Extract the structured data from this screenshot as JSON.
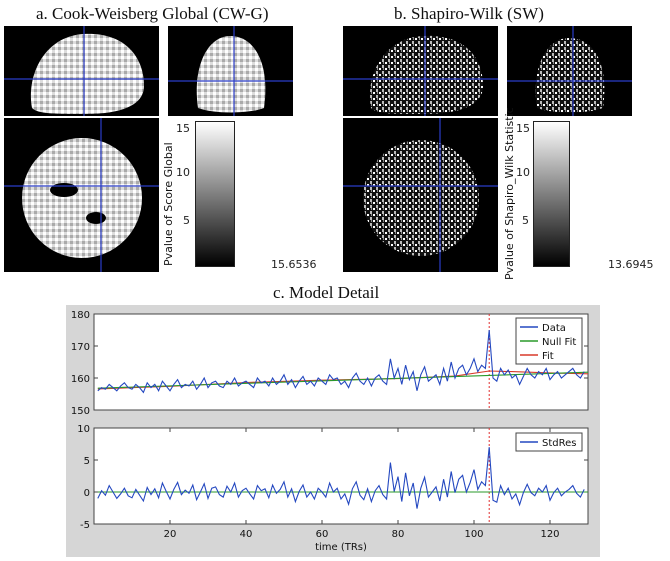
{
  "panels": {
    "a": {
      "title": "a. Cook-Weisberg Global (CW-G)",
      "colorbar_label": "Pvalue of Score Global",
      "colorbar_ticks": [
        "15",
        "10",
        "5"
      ],
      "colorbar_max": "15.6536"
    },
    "b": {
      "title": "b. Shapiro-Wilk (SW)",
      "colorbar_label": "Pvalue of Shapiro_Wilk Statistic",
      "colorbar_ticks": [
        "15",
        "10",
        "5"
      ],
      "colorbar_max": "13.6945"
    },
    "c": {
      "title": "c. Model Detail",
      "xlabel": "time (TRs)"
    }
  },
  "colors": {
    "crosshair": "#2a3cc8",
    "data": "#2448c0",
    "null_fit": "#2a9a2a",
    "fit": "#d83a2a",
    "marker": "#e03030",
    "frame": "#d6d6d6"
  },
  "chart_data": [
    {
      "type": "line",
      "title": "",
      "xlabel": "",
      "ylabel": "",
      "xlim": [
        0,
        130
      ],
      "ylim": [
        150,
        180
      ],
      "yticks": [
        "180",
        "170",
        "160",
        "150"
      ],
      "xticks": [],
      "vline_x": 104,
      "legend": "top-right",
      "series": [
        {
          "name": "Data",
          "x": [
            1,
            2,
            3,
            4,
            5,
            6,
            7,
            8,
            9,
            10,
            11,
            12,
            13,
            14,
            15,
            16,
            17,
            18,
            19,
            20,
            21,
            22,
            23,
            24,
            25,
            26,
            27,
            28,
            29,
            30,
            31,
            32,
            33,
            34,
            35,
            36,
            37,
            38,
            39,
            40,
            41,
            42,
            43,
            44,
            45,
            46,
            47,
            48,
            49,
            50,
            51,
            52,
            53,
            54,
            55,
            56,
            57,
            58,
            59,
            60,
            61,
            62,
            63,
            64,
            65,
            66,
            67,
            68,
            69,
            70,
            71,
            72,
            73,
            74,
            75,
            76,
            77,
            78,
            79,
            80,
            81,
            82,
            83,
            84,
            85,
            86,
            87,
            88,
            89,
            90,
            91,
            92,
            93,
            94,
            95,
            96,
            97,
            98,
            99,
            100,
            101,
            102,
            103,
            104,
            105,
            106,
            107,
            108,
            109,
            110,
            111,
            112,
            113,
            114,
            115,
            116,
            117,
            118,
            119,
            120,
            121,
            122,
            123,
            124,
            125,
            126,
            127,
            128,
            129
          ],
          "y": [
            156,
            157,
            156.5,
            158,
            157,
            156,
            157.5,
            158.5,
            157,
            156.5,
            158,
            157,
            155.5,
            158.5,
            157,
            158,
            156,
            159,
            157.5,
            156,
            158,
            159.5,
            157,
            158,
            157.5,
            159,
            156.5,
            158,
            160,
            157,
            158.5,
            159,
            157.5,
            157,
            159,
            158,
            160,
            157.5,
            158.5,
            159,
            158,
            157,
            160,
            158.5,
            159,
            157.5,
            160,
            158,
            159,
            161,
            158,
            159.5,
            157,
            159,
            160.5,
            158,
            159,
            157.5,
            160,
            159,
            158,
            161,
            159.5,
            160,
            158,
            159,
            157,
            160,
            161.5,
            159,
            158,
            160,
            157.5,
            160,
            161,
            159,
            158,
            166,
            160,
            163,
            158,
            164,
            159.5,
            162,
            156,
            161,
            163.5,
            159,
            160,
            161,
            158,
            163,
            159,
            165,
            160,
            163,
            164,
            161,
            163,
            166,
            162,
            164,
            163,
            175,
            160,
            159,
            163,
            161,
            162.5,
            160,
            161,
            158,
            160.5,
            163,
            161,
            160,
            162,
            161,
            163,
            159.5,
            161,
            162,
            160,
            161,
            162,
            163,
            161,
            160,
            162
          ]
        },
        {
          "name": "Null Fit",
          "x": [
            1,
            130
          ],
          "y": [
            156.8,
            161.8
          ]
        },
        {
          "name": "Fit",
          "x": [
            1,
            20,
            40,
            60,
            80,
            95,
            104,
            110,
            120,
            130
          ],
          "y": [
            156.6,
            157.4,
            158.6,
            159.3,
            159.8,
            160.6,
            162.2,
            162.0,
            161.6,
            161.3
          ]
        }
      ]
    },
    {
      "type": "line",
      "title": "",
      "xlabel": "time (TRs)",
      "ylabel": "",
      "xlim": [
        0,
        130
      ],
      "ylim": [
        -5,
        10
      ],
      "yticks": [
        "10",
        "5",
        "0",
        "-5"
      ],
      "xticks": [
        "20",
        "40",
        "60",
        "80",
        "100",
        "120"
      ],
      "vline_x": 104,
      "legend": "top-right",
      "series": [
        {
          "name": "StdRes",
          "x": [
            1,
            2,
            3,
            4,
            5,
            6,
            7,
            8,
            9,
            10,
            11,
            12,
            13,
            14,
            15,
            16,
            17,
            18,
            19,
            20,
            21,
            22,
            23,
            24,
            25,
            26,
            27,
            28,
            29,
            30,
            31,
            32,
            33,
            34,
            35,
            36,
            37,
            38,
            39,
            40,
            41,
            42,
            43,
            44,
            45,
            46,
            47,
            48,
            49,
            50,
            51,
            52,
            53,
            54,
            55,
            56,
            57,
            58,
            59,
            60,
            61,
            62,
            63,
            64,
            65,
            66,
            67,
            68,
            69,
            70,
            71,
            72,
            73,
            74,
            75,
            76,
            77,
            78,
            79,
            80,
            81,
            82,
            83,
            84,
            85,
            86,
            87,
            88,
            89,
            90,
            91,
            92,
            93,
            94,
            95,
            96,
            97,
            98,
            99,
            100,
            101,
            102,
            103,
            104,
            105,
            106,
            107,
            108,
            109,
            110,
            111,
            112,
            113,
            114,
            115,
            116,
            117,
            118,
            119,
            120,
            121,
            122,
            123,
            124,
            125,
            126,
            127,
            128,
            129
          ],
          "y": [
            -1,
            0.2,
            -0.5,
            1,
            0,
            -1,
            -0.3,
            0.6,
            -0.6,
            -0.9,
            0.4,
            -0.5,
            -1.4,
            0.7,
            -0.4,
            0.5,
            -0.9,
            1.4,
            0.1,
            -1.1,
            0.4,
            1.5,
            -0.4,
            0.3,
            -0.2,
            1.1,
            -1.2,
            0,
            1.3,
            -1,
            0.6,
            0.8,
            -0.4,
            -0.8,
            0.9,
            0,
            1.4,
            -0.8,
            0.2,
            0.6,
            -0.3,
            -1.1,
            1,
            0.2,
            0.5,
            -0.9,
            1.1,
            -0.2,
            0.4,
            1.6,
            -0.8,
            0.5,
            -1.5,
            0.1,
            1.1,
            -0.8,
            0,
            -1.1,
            0.6,
            0,
            -0.8,
            1.4,
            0,
            0.6,
            -1.1,
            -0.3,
            -1.9,
            0.5,
            1.6,
            -0.5,
            -1.2,
            0.5,
            -1.5,
            0.2,
            1,
            -0.4,
            -1.1,
            4.6,
            0.1,
            2.4,
            -1.5,
            3,
            -0.6,
            1.4,
            -2.6,
            0.6,
            2.3,
            -0.8,
            0,
            0.8,
            -1.4,
            2,
            -0.8,
            3.2,
            -0.1,
            2,
            2.6,
            0,
            1.5,
            3.5,
            0.4,
            1.6,
            1,
            7,
            -1.3,
            -1.6,
            1,
            -0.4,
            0.6,
            -1.1,
            -0.3,
            -2,
            -0.1,
            1.2,
            -0.1,
            -0.6,
            0.6,
            0,
            1,
            -1.3,
            -0.1,
            0.6,
            -0.6,
            0,
            0.4,
            1,
            -0.2,
            -0.8,
            0.4
          ]
        },
        {
          "name": "",
          "x": [
            1,
            130
          ],
          "y": [
            0,
            0
          ]
        }
      ]
    }
  ]
}
